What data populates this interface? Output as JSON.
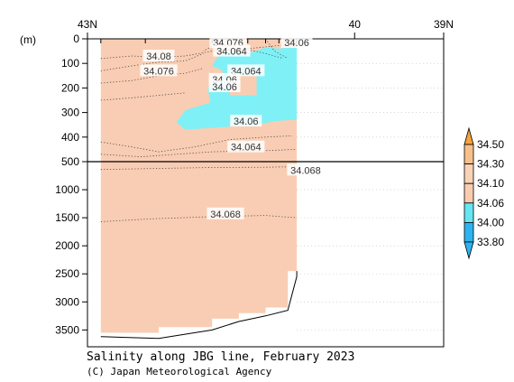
{
  "chart_data": {
    "type": "contour",
    "title": "Salinity along JBG line, February 2023",
    "credit": "(C) Japan Meteorological Agency",
    "ylabel": "(m)",
    "x_ticks": [
      {
        "lat": 43,
        "label": "43N"
      },
      {
        "lat": 40,
        "label": "40"
      },
      {
        "lat": 39,
        "label": "39N"
      }
    ],
    "xlim": [
      43,
      39
    ],
    "y_upper": {
      "range": [
        0,
        500
      ],
      "ticks": [
        0,
        100,
        200,
        300,
        400,
        500
      ]
    },
    "y_lower": {
      "range": [
        500,
        3800
      ],
      "ticks": [
        1000,
        1500,
        2000,
        2500,
        3000,
        3500
      ]
    },
    "colorbar": {
      "levels": [
        "34.50",
        "34.30",
        "34.10",
        "34.06",
        "34.00",
        "33.80"
      ],
      "colors": [
        "#f4a53c",
        "#f6c08a",
        "#f8d2b6",
        "#f9ccb0",
        "#66e6f2",
        "#2db4f0"
      ]
    },
    "fill_colors": {
      "main": "#f9cdb3",
      "fresh": "#7ff0f6"
    },
    "contour_labels": [
      {
        "text": "34.076",
        "lat": 41.42,
        "depth": 15
      },
      {
        "text": "34.06",
        "lat": 40.65,
        "depth": 15
      },
      {
        "text": "34.08",
        "lat": 42.2,
        "depth": 70
      },
      {
        "text": "34.064",
        "lat": 41.38,
        "depth": 50
      },
      {
        "text": "34.076",
        "lat": 42.2,
        "depth": 130
      },
      {
        "text": "34.064",
        "lat": 41.22,
        "depth": 130
      },
      {
        "text": "34.06",
        "lat": 41.46,
        "depth": 165
      },
      {
        "text": "34.06",
        "lat": 41.46,
        "depth": 195
      },
      {
        "text": "34.06",
        "lat": 41.22,
        "depth": 335
      },
      {
        "text": "34.064",
        "lat": 41.22,
        "depth": 440
      },
      {
        "text": "34.068",
        "lat": 40.55,
        "depth": 650
      },
      {
        "text": "34.068",
        "lat": 41.45,
        "depth": 1430
      }
    ]
  }
}
